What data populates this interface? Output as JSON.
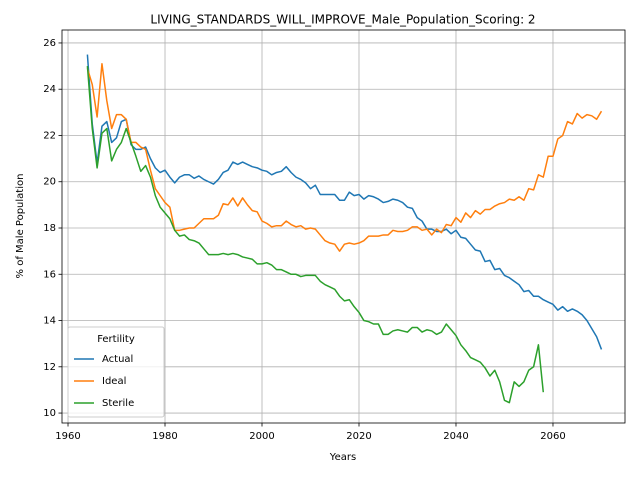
{
  "chart_data": {
    "type": "line",
    "title": "LIVING_STANDARDS_WILL_IMPROVE_Male_Population_Scoring: 2",
    "xlabel": "Years",
    "ylabel": "% of Male Population",
    "legend_title": "Fertility",
    "legend": "lower left",
    "grid": true,
    "xlim": [
      1958.76,
      2074.85
    ],
    "ylim": [
      9.57,
      26.56
    ],
    "xticks": [
      1960,
      1980,
      2000,
      2020,
      2040,
      2060
    ],
    "yticks": [
      10,
      12,
      14,
      16,
      18,
      20,
      22,
      24,
      26
    ],
    "x": [
      1964,
      1965,
      1966,
      1967,
      1968,
      1969,
      1970,
      1971,
      1972,
      1973,
      1974,
      1975,
      1976,
      1977,
      1978,
      1979,
      1980,
      1981,
      1982,
      1983,
      1984,
      1985,
      1986,
      1987,
      1988,
      1989,
      1990,
      1991,
      1992,
      1993,
      1994,
      1995,
      1996,
      1997,
      1998,
      1999,
      2000,
      2001,
      2002,
      2003,
      2004,
      2005,
      2006,
      2007,
      2008,
      2009,
      2010,
      2011,
      2012,
      2013,
      2014,
      2015,
      2016,
      2017,
      2018,
      2019,
      2020,
      2021,
      2022,
      2023,
      2024,
      2025,
      2026,
      2027,
      2028,
      2029,
      2030,
      2031,
      2032,
      2033,
      2034,
      2035,
      2036,
      2037,
      2038,
      2039,
      2040,
      2041,
      2042,
      2043,
      2044,
      2045,
      2046,
      2047,
      2048,
      2049,
      2050,
      2051,
      2052,
      2053,
      2054,
      2055,
      2056,
      2057,
      2058,
      2059,
      2060,
      2061,
      2062,
      2063,
      2064,
      2065,
      2066,
      2067,
      2068,
      2069,
      2070
    ],
    "series": [
      {
        "name": "Actual",
        "color": "#1f77b4",
        "values": [
          25.5,
          22.5,
          20.8,
          22.4,
          22.6,
          21.7,
          21.9,
          22.6,
          22.7,
          21.6,
          21.4,
          21.4,
          21.5,
          21.0,
          20.6,
          20.4,
          20.5,
          20.2,
          19.95,
          20.2,
          20.3,
          20.3,
          20.15,
          20.25,
          20.1,
          20.0,
          19.9,
          20.1,
          20.4,
          20.5,
          20.85,
          20.75,
          20.85,
          20.75,
          20.65,
          20.6,
          20.5,
          20.45,
          20.3,
          20.4,
          20.45,
          20.65,
          20.4,
          20.2,
          20.1,
          19.95,
          19.7,
          19.85,
          19.45,
          19.45,
          19.45,
          19.45,
          19.2,
          19.2,
          19.55,
          19.4,
          19.45,
          19.25,
          19.4,
          19.35,
          19.25,
          19.1,
          19.15,
          19.25,
          19.2,
          19.1,
          18.9,
          18.85,
          18.45,
          18.3,
          17.95,
          17.95,
          17.85,
          17.85,
          17.95,
          17.75,
          17.9,
          17.6,
          17.55,
          17.3,
          17.05,
          17.0,
          16.55,
          16.6,
          16.2,
          16.25,
          15.95,
          15.85,
          15.7,
          15.55,
          15.25,
          15.3,
          15.05,
          15.05,
          14.9,
          14.8,
          14.7,
          14.45,
          14.6,
          14.4,
          14.5,
          14.4,
          14.25,
          14.0,
          13.65,
          13.3,
          12.75
        ]
      },
      {
        "name": "Ideal",
        "color": "#ff7f0e",
        "values": [
          24.9,
          24.2,
          22.8,
          25.1,
          23.5,
          22.3,
          22.9,
          22.9,
          22.7,
          21.7,
          21.7,
          21.5,
          21.4,
          20.5,
          19.7,
          19.4,
          19.1,
          18.9,
          17.9,
          17.9,
          17.95,
          18.0,
          18.0,
          18.2,
          18.4,
          18.4,
          18.4,
          18.55,
          19.05,
          19.0,
          19.3,
          18.95,
          19.3,
          19.0,
          18.75,
          18.7,
          18.3,
          18.2,
          18.05,
          18.1,
          18.1,
          18.3,
          18.15,
          18.05,
          18.1,
          17.95,
          18.0,
          17.95,
          17.7,
          17.45,
          17.35,
          17.3,
          17.0,
          17.3,
          17.35,
          17.3,
          17.35,
          17.45,
          17.65,
          17.65,
          17.65,
          17.7,
          17.7,
          17.9,
          17.85,
          17.85,
          17.9,
          18.05,
          18.05,
          17.9,
          17.95,
          17.7,
          17.95,
          17.8,
          18.15,
          18.1,
          18.45,
          18.25,
          18.65,
          18.45,
          18.75,
          18.6,
          18.8,
          18.8,
          18.95,
          19.05,
          19.1,
          19.25,
          19.2,
          19.35,
          19.2,
          19.7,
          19.65,
          20.3,
          20.2,
          21.1,
          21.1,
          21.85,
          22.0,
          22.6,
          22.5,
          22.95,
          22.75,
          22.9,
          22.85,
          22.7,
          23.05
        ]
      },
      {
        "name": "Sterile",
        "color": "#2ca02c",
        "values": [
          25.0,
          22.3,
          20.6,
          22.1,
          22.3,
          20.9,
          21.4,
          21.7,
          22.3,
          21.7,
          21.1,
          20.45,
          20.7,
          20.2,
          19.4,
          18.9,
          18.65,
          18.4,
          17.9,
          17.65,
          17.7,
          17.5,
          17.45,
          17.35,
          17.1,
          16.85,
          16.85,
          16.85,
          16.9,
          16.85,
          16.9,
          16.85,
          16.75,
          16.7,
          16.65,
          16.45,
          16.45,
          16.5,
          16.4,
          16.2,
          16.2,
          16.1,
          16.0,
          16.0,
          15.9,
          15.95,
          15.95,
          15.95,
          15.7,
          15.55,
          15.45,
          15.35,
          15.05,
          14.85,
          14.9,
          14.6,
          14.35,
          14.0,
          13.95,
          13.85,
          13.85,
          13.4,
          13.4,
          13.55,
          13.6,
          13.55,
          13.5,
          13.7,
          13.7,
          13.5,
          13.6,
          13.55,
          13.4,
          13.5,
          13.85,
          13.6,
          13.35,
          12.95,
          12.7,
          12.4,
          12.3,
          12.2,
          11.95,
          11.6,
          11.85,
          11.35,
          10.55,
          10.45,
          11.35,
          11.15,
          11.35,
          11.85,
          12.0,
          12.95,
          10.9,
          null,
          null,
          null,
          null,
          null,
          null,
          null,
          null,
          null,
          null,
          null,
          null
        ]
      }
    ]
  }
}
